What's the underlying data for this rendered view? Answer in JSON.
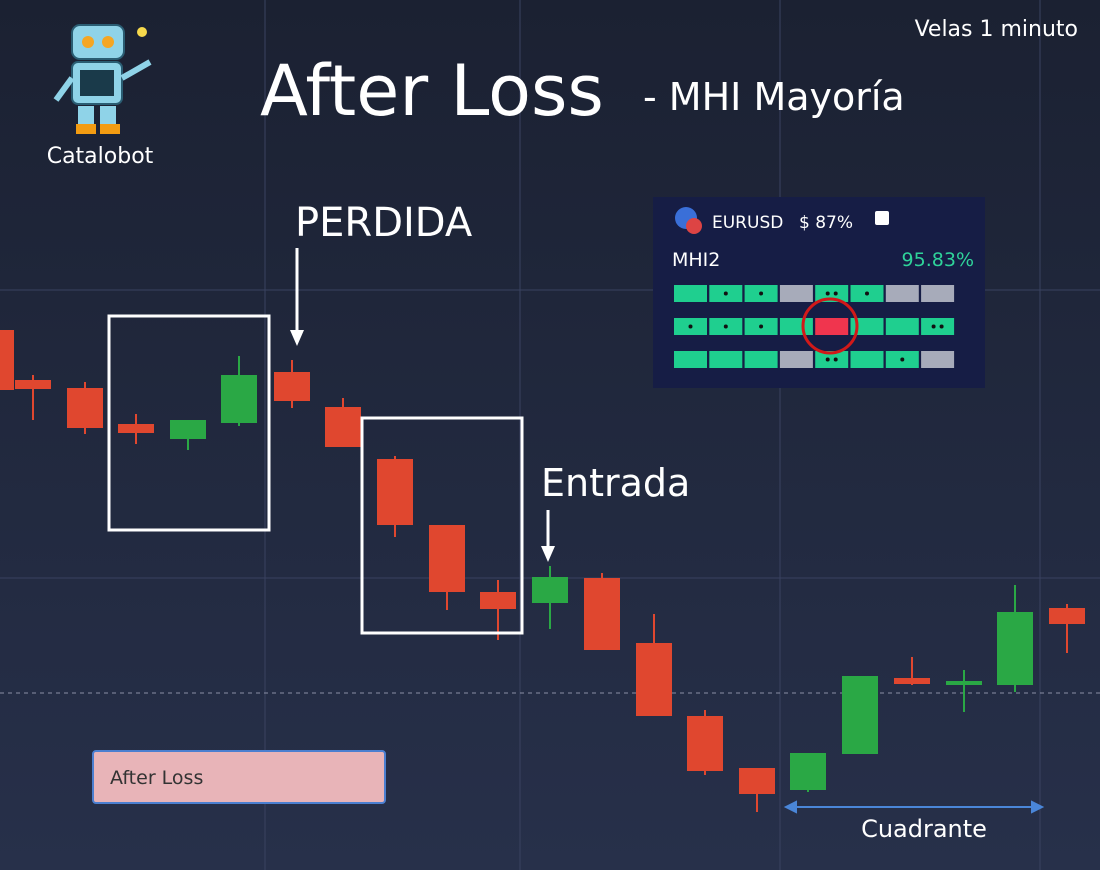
{
  "header": {
    "title": "After Loss",
    "subtitle": "- MHI Mayoría",
    "timeframe": "Velas 1 minuto"
  },
  "logo": {
    "name": "Catalobot"
  },
  "annotations": {
    "loss": "PERDIDA",
    "entry": "Entrada",
    "quadrant": "Cuadrante"
  },
  "panel": {
    "pair": "EURUSD",
    "payout": "$ 87%",
    "strategy": "MHI2",
    "rate": "95.83%"
  },
  "input": {
    "value": "After Loss"
  }
}
